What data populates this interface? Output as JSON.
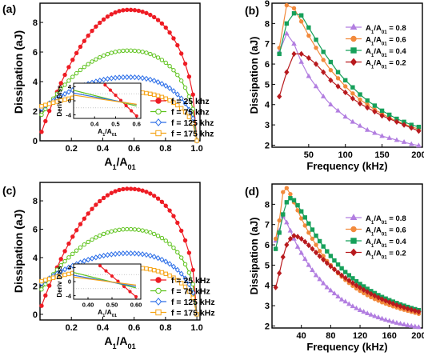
{
  "panels": [
    {
      "id": "a",
      "panel_label": "(a)",
      "chart_data": {
        "type": "line",
        "xlabel": "A",
        "xlabel_sub": "1",
        "xlabel_mid": "/A",
        "xlabel_sub2": "01",
        "ylabel": "Dissipation (aJ)",
        "xlim": [
          0,
          1.02
        ],
        "ylim": [
          0,
          9.3
        ],
        "xticks": [
          0.2,
          0.4,
          0.6,
          0.8,
          1.0
        ],
        "xtick_labels": [
          "0.2",
          "0.4",
          "0.6",
          "0.8",
          "1.0"
        ],
        "yticks": [
          0,
          2,
          4,
          6,
          8
        ],
        "ytick_labels": [
          "0",
          "2",
          "4",
          "6",
          "8"
        ],
        "legend_position": "bottom-right",
        "series": [
          {
            "name": "f = 25 khz",
            "color": "#ee1c24",
            "marker": "circle-filled",
            "peak": 8.85,
            "y0": 0.3
          },
          {
            "name": "f = 75 khz",
            "color": "#5cc21a",
            "marker": "circle-open",
            "peak": 6.1,
            "y0": 1.6
          },
          {
            "name": "f = 125 khz",
            "color": "#2d6fe8",
            "marker": "diamond-open",
            "peak": 4.3,
            "y0": 2.1
          },
          {
            "name": "f = 175 khz",
            "color": "#f5a416",
            "marker": "square-open",
            "peak": 3.3,
            "y0": 2.3
          }
        ],
        "inset": {
          "ylabel": "Deriv Diss",
          "xlabel": "A",
          "xlabel_sub": "1",
          "xlabel_mid": "/A",
          "xlabel_sub2": "01",
          "xlim": [
            0.3,
            0.62
          ],
          "ylim": [
            -5,
            5
          ],
          "xticks": [
            0.4,
            0.5,
            0.6
          ],
          "xtick_labels": [
            "0.4",
            "0.5",
            "0.6"
          ],
          "yticks": [
            -4,
            0,
            4
          ],
          "ytick_labels": [
            "-4",
            "0",
            "4"
          ],
          "lines": [
            {
              "color": "#ee1c24",
              "x": [
                0.45,
                0.6
              ],
              "y": [
                4.5,
                -4.3
              ],
              "marker": "circle-filled"
            },
            {
              "color": "#5cc21a",
              "x": [
                0.3,
                0.6
              ],
              "y": [
                3.0,
                -1.5
              ],
              "marker": "none"
            },
            {
              "color": "#2d6fe8",
              "x": [
                0.3,
                0.6
              ],
              "y": [
                2.2,
                -1.1
              ],
              "marker": "none"
            },
            {
              "color": "#f5a416",
              "x": [
                0.3,
                0.6
              ],
              "y": [
                1.6,
                -1.0
              ],
              "marker": "none"
            }
          ]
        }
      }
    },
    {
      "id": "b",
      "panel_label": "(b)",
      "chart_data": {
        "type": "line",
        "xlabel": "Frequency (kHz)",
        "ylabel": "Dissipation (aJ)",
        "xlim": [
          0,
          205
        ],
        "ylim": [
          1.9,
          9.0
        ],
        "xticks": [
          50,
          100,
          150,
          200
        ],
        "xtick_labels": [
          "50",
          "100",
          "150",
          "200"
        ],
        "yticks": [
          2,
          3,
          4,
          5,
          6,
          7,
          8,
          9
        ],
        "ytick_labels": [
          "2",
          "3",
          "4",
          "5",
          "6",
          "7",
          "8",
          "9"
        ],
        "legend_position": "top-right",
        "x": [
          10,
          20,
          30,
          40,
          50,
          60,
          70,
          80,
          90,
          100,
          110,
          120,
          130,
          140,
          150,
          160,
          170,
          180,
          190,
          200
        ],
        "series": [
          {
            "name": "A",
            "name_sub": "1",
            "name_mid": "/A",
            "name_sub2": "01",
            "name_tail": " = 0.8",
            "color": "#b27ee0",
            "marker": "triangle",
            "values": [
              6.6,
              7.5,
              7.0,
              6.1,
              5.4,
              4.9,
              4.4,
              4.0,
              3.7,
              3.4,
              3.15,
              2.95,
              2.75,
              2.6,
              2.45,
              2.35,
              2.25,
              2.15,
              2.05,
              1.98
            ]
          },
          {
            "name": "A",
            "name_sub": "1",
            "name_mid": "/A",
            "name_sub2": "01",
            "name_tail": " = 0.6",
            "color": "#f28a3c",
            "marker": "circle",
            "values": [
              6.8,
              8.9,
              8.75,
              8.1,
              7.4,
              6.8,
              6.2,
              5.7,
              5.3,
              4.9,
              4.55,
              4.25,
              4.0,
              3.75,
              3.55,
              3.35,
              3.2,
              3.05,
              2.9,
              2.8
            ]
          },
          {
            "name": "A",
            "name_sub": "1",
            "name_mid": "/A",
            "name_sub2": "01",
            "name_tail": " = 0.4",
            "color": "#16a05a",
            "marker": "square",
            "values": [
              6.5,
              8.0,
              8.5,
              8.4,
              7.8,
              7.2,
              6.6,
              6.1,
              5.6,
              5.2,
              4.85,
              4.5,
              4.2,
              3.95,
              3.7,
              3.5,
              3.3,
              3.15,
              3.0,
              2.9
            ]
          },
          {
            "name": "A",
            "name_sub": "1",
            "name_mid": "/A",
            "name_sub2": "01",
            "name_tail": " = 0.2",
            "color": "#b81a1e",
            "marker": "diamond",
            "values": [
              4.4,
              5.6,
              6.5,
              6.5,
              6.3,
              6.0,
              5.6,
              5.2,
              4.9,
              4.6,
              4.3,
              4.05,
              3.85,
              3.65,
              3.45,
              3.3,
              3.15,
              3.0,
              2.85,
              2.7
            ]
          }
        ]
      }
    },
    {
      "id": "c",
      "panel_label": "(c)",
      "chart_data": {
        "type": "line",
        "xlabel": "A",
        "xlabel_sub": "1",
        "xlabel_mid": "/A",
        "xlabel_sub2": "01",
        "ylabel": "Dissipation (aJ)",
        "xlim": [
          0,
          1.02
        ],
        "ylim": [
          -0.4,
          9.3
        ],
        "xticks": [
          0.2,
          0.4,
          0.6,
          0.8,
          1.0
        ],
        "xtick_labels": [
          "0.2",
          "0.4",
          "0.6",
          "0.8",
          "1.0"
        ],
        "yticks": [
          0,
          2,
          4,
          6,
          8
        ],
        "ytick_labels": [
          "0",
          "2",
          "4",
          "6",
          "8"
        ],
        "legend_position": "bottom-right",
        "series": [
          {
            "name": "f = 25 kHz",
            "color": "#ee1c24",
            "marker": "circle-filled",
            "peak": 8.85,
            "y0": 0.3
          },
          {
            "name": "f = 75 kHz",
            "color": "#5cc21a",
            "marker": "circle-open",
            "peak": 6.0,
            "y0": 1.6
          },
          {
            "name": "f = 125 kHz",
            "color": "#2d6fe8",
            "marker": "diamond-open",
            "peak": 4.3,
            "y0": 2.1
          },
          {
            "name": "f = 175 kHz",
            "color": "#f5a416",
            "marker": "square-open",
            "peak": 3.3,
            "y0": 2.3
          }
        ],
        "inset": {
          "ylabel": "Deriv Diss",
          "xlabel": "A",
          "xlabel_sub": "1",
          "xlabel_mid": "/A",
          "xlabel_sub2": "01",
          "xlim": [
            0.34,
            0.62
          ],
          "ylim": [
            -5,
            5
          ],
          "xticks": [
            0.4,
            0.5,
            0.6
          ],
          "xtick_labels": [
            "0.40",
            "0.50",
            "0.60"
          ],
          "yticks": [
            -4,
            0,
            4
          ],
          "ytick_labels": [
            "-4",
            "0",
            "4"
          ],
          "lines": [
            {
              "color": "#ee1c24",
              "x": [
                0.45,
                0.6
              ],
              "y": [
                4.5,
                -4.3
              ],
              "marker": "circle-filled"
            },
            {
              "color": "#5cc21a",
              "x": [
                0.34,
                0.6
              ],
              "y": [
                2.6,
                -1.8
              ],
              "marker": "none"
            },
            {
              "color": "#2d6fe8",
              "x": [
                0.34,
                0.6
              ],
              "y": [
                1.8,
                -1.4
              ],
              "marker": "none"
            },
            {
              "color": "#f5a416",
              "x": [
                0.34,
                0.6
              ],
              "y": [
                1.3,
                -1.0
              ],
              "marker": "none"
            }
          ]
        }
      }
    },
    {
      "id": "d",
      "panel_label": "(d)",
      "chart_data": {
        "type": "line",
        "xlabel": "Frequency (kHz)",
        "ylabel": "Dissipation (aJ)",
        "xlim": [
          0,
          205
        ],
        "ylim": [
          1.9,
          9.0
        ],
        "xticks": [
          40,
          80,
          120,
          160,
          200
        ],
        "xtick_labels": [
          "40",
          "80",
          "120",
          "160",
          "200"
        ],
        "yticks": [
          2,
          3,
          4,
          5,
          6,
          7,
          8
        ],
        "ytick_labels": [
          "2",
          "3",
          "4",
          "5",
          "6",
          "7",
          "8"
        ],
        "legend_position": "top-right",
        "x": [
          5,
          10,
          15,
          20,
          25,
          30,
          35,
          40,
          45,
          50,
          55,
          60,
          65,
          70,
          75,
          80,
          85,
          90,
          95,
          100,
          105,
          110,
          115,
          120,
          125,
          130,
          135,
          140,
          145,
          150,
          155,
          160,
          165,
          170,
          175,
          180,
          185,
          190,
          195,
          200
        ],
        "series": [
          {
            "name": "A",
            "name_sub": "1",
            "name_mid": "/A",
            "name_sub2": "01",
            "name_tail": " = 0.8",
            "color": "#b27ee0",
            "marker": "triangle",
            "values": [
              6.2,
              6.7,
              7.4,
              7.1,
              6.7,
              6.3,
              5.9,
              5.6,
              5.3,
              5.0,
              4.75,
              4.5,
              4.3,
              4.1,
              3.9,
              3.75,
              3.6,
              3.45,
              3.3,
              3.2,
              3.08,
              2.97,
              2.87,
              2.78,
              2.7,
              2.62,
              2.55,
              2.48,
              2.42,
              2.36,
              2.3,
              2.25,
              2.2,
              2.15,
              2.11,
              2.07,
              2.03,
              2.0,
              1.97,
              1.94
            ]
          },
          {
            "name": "A",
            "name_sub": "1",
            "name_mid": "/A",
            "name_sub2": "01",
            "name_tail": " = 0.6",
            "color": "#f28a3c",
            "marker": "circle",
            "values": [
              6.3,
              7.2,
              8.6,
              8.8,
              8.5,
              8.1,
              7.7,
              7.3,
              6.95,
              6.6,
              6.3,
              6.0,
              5.7,
              5.45,
              5.2,
              5.0,
              4.8,
              4.6,
              4.43,
              4.27,
              4.12,
              3.98,
              3.85,
              3.73,
              3.62,
              3.52,
              3.42,
              3.33,
              3.25,
              3.17,
              3.1,
              3.03,
              2.97,
              2.91,
              2.85,
              2.8,
              2.75,
              2.7,
              2.65,
              2.6
            ]
          },
          {
            "name": "A",
            "name_sub": "1",
            "name_mid": "/A",
            "name_sub2": "01",
            "name_tail": " = 0.4",
            "color": "#16a05a",
            "marker": "square",
            "values": [
              5.8,
              6.6,
              7.5,
              8.1,
              8.3,
              8.2,
              7.95,
              7.65,
              7.35,
              7.05,
              6.75,
              6.45,
              6.18,
              5.92,
              5.68,
              5.45,
              5.23,
              5.03,
              4.84,
              4.66,
              4.5,
              4.35,
              4.2,
              4.07,
              3.95,
              3.83,
              3.72,
              3.62,
              3.52,
              3.43,
              3.35,
              3.27,
              3.2,
              3.13,
              3.06,
              3.0,
              2.94,
              2.88,
              2.83,
              2.78
            ]
          },
          {
            "name": "A",
            "name_sub": "1",
            "name_mid": "/A",
            "name_sub2": "01",
            "name_tail": " = 0.2",
            "color": "#b81a1e",
            "marker": "diamond",
            "values": [
              3.9,
              4.6,
              5.4,
              6.0,
              6.3,
              6.45,
              6.4,
              6.3,
              6.15,
              5.98,
              5.8,
              5.62,
              5.44,
              5.27,
              5.1,
              4.94,
              4.79,
              4.64,
              4.5,
              4.37,
              4.24,
              4.12,
              4.0,
              3.89,
              3.78,
              3.68,
              3.58,
              3.49,
              3.4,
              3.32,
              3.24,
              3.17,
              3.1,
              3.03,
              2.97,
              2.91,
              2.85,
              2.8,
              2.75,
              2.7
            ]
          }
        ]
      }
    }
  ]
}
